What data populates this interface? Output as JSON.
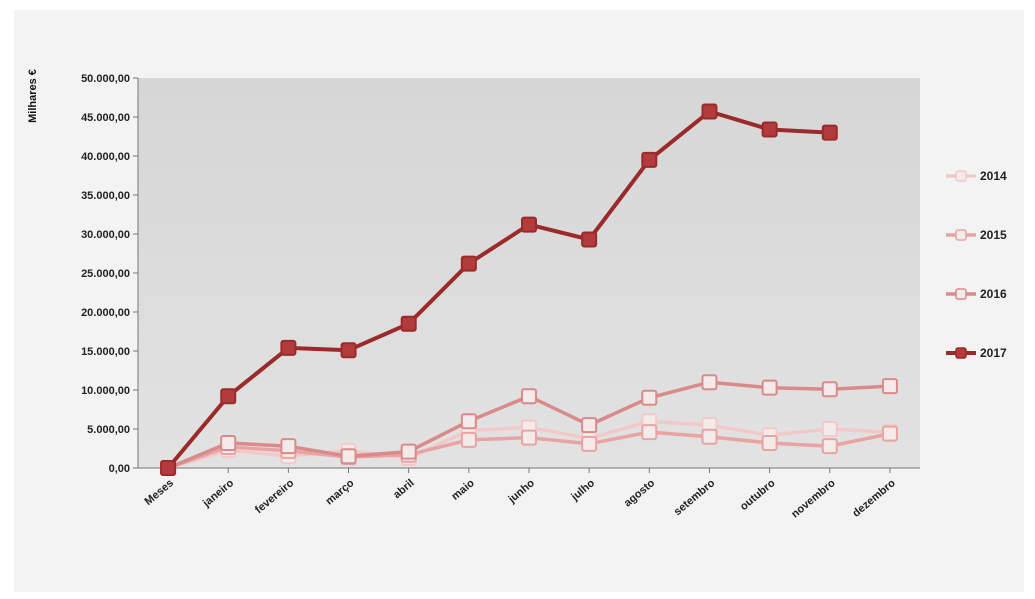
{
  "chart_data": {
    "type": "line",
    "ylabel": "Milhares €",
    "xlabel": "",
    "title": "",
    "ylim": [
      0,
      50000
    ],
    "y_ticks": [
      0,
      5000,
      10000,
      15000,
      20000,
      25000,
      30000,
      35000,
      40000,
      45000,
      50000
    ],
    "y_tick_labels": [
      "0,00",
      "5.000,00",
      "10.000,00",
      "15.000,00",
      "20.000,00",
      "25.000,00",
      "30.000,00",
      "35.000,00",
      "40.000,00",
      "45.000,00",
      "50.000,00"
    ],
    "categories": [
      "Meses",
      "janeiro",
      "fevereiro",
      "março",
      "abril",
      "maio",
      "junho",
      "julho",
      "agosto",
      "setembro",
      "outubro",
      "novembro",
      "dezembro"
    ],
    "grid": false,
    "legend_position": "right",
    "series": [
      {
        "name": "2014",
        "color": "#f2c9c9",
        "values": [
          0,
          2300,
          1500,
          2200,
          1300,
          4800,
          5200,
          3800,
          6000,
          5500,
          4200,
          5000,
          4600
        ]
      },
      {
        "name": "2015",
        "color": "#e8a3a3",
        "values": [
          0,
          2700,
          2200,
          1400,
          1700,
          3600,
          3900,
          3100,
          4600,
          4000,
          3200,
          2800,
          4400
        ]
      },
      {
        "name": "2016",
        "color": "#d98a8a",
        "values": [
          0,
          3200,
          2800,
          1500,
          2100,
          6000,
          9200,
          5500,
          9000,
          11000,
          10300,
          10100,
          10500
        ]
      },
      {
        "name": "2017",
        "color": "#9b2a2a",
        "values": [
          0,
          9200,
          15400,
          15100,
          18500,
          26200,
          31200,
          29300,
          39500,
          45700,
          43400,
          43000,
          null
        ]
      }
    ]
  }
}
